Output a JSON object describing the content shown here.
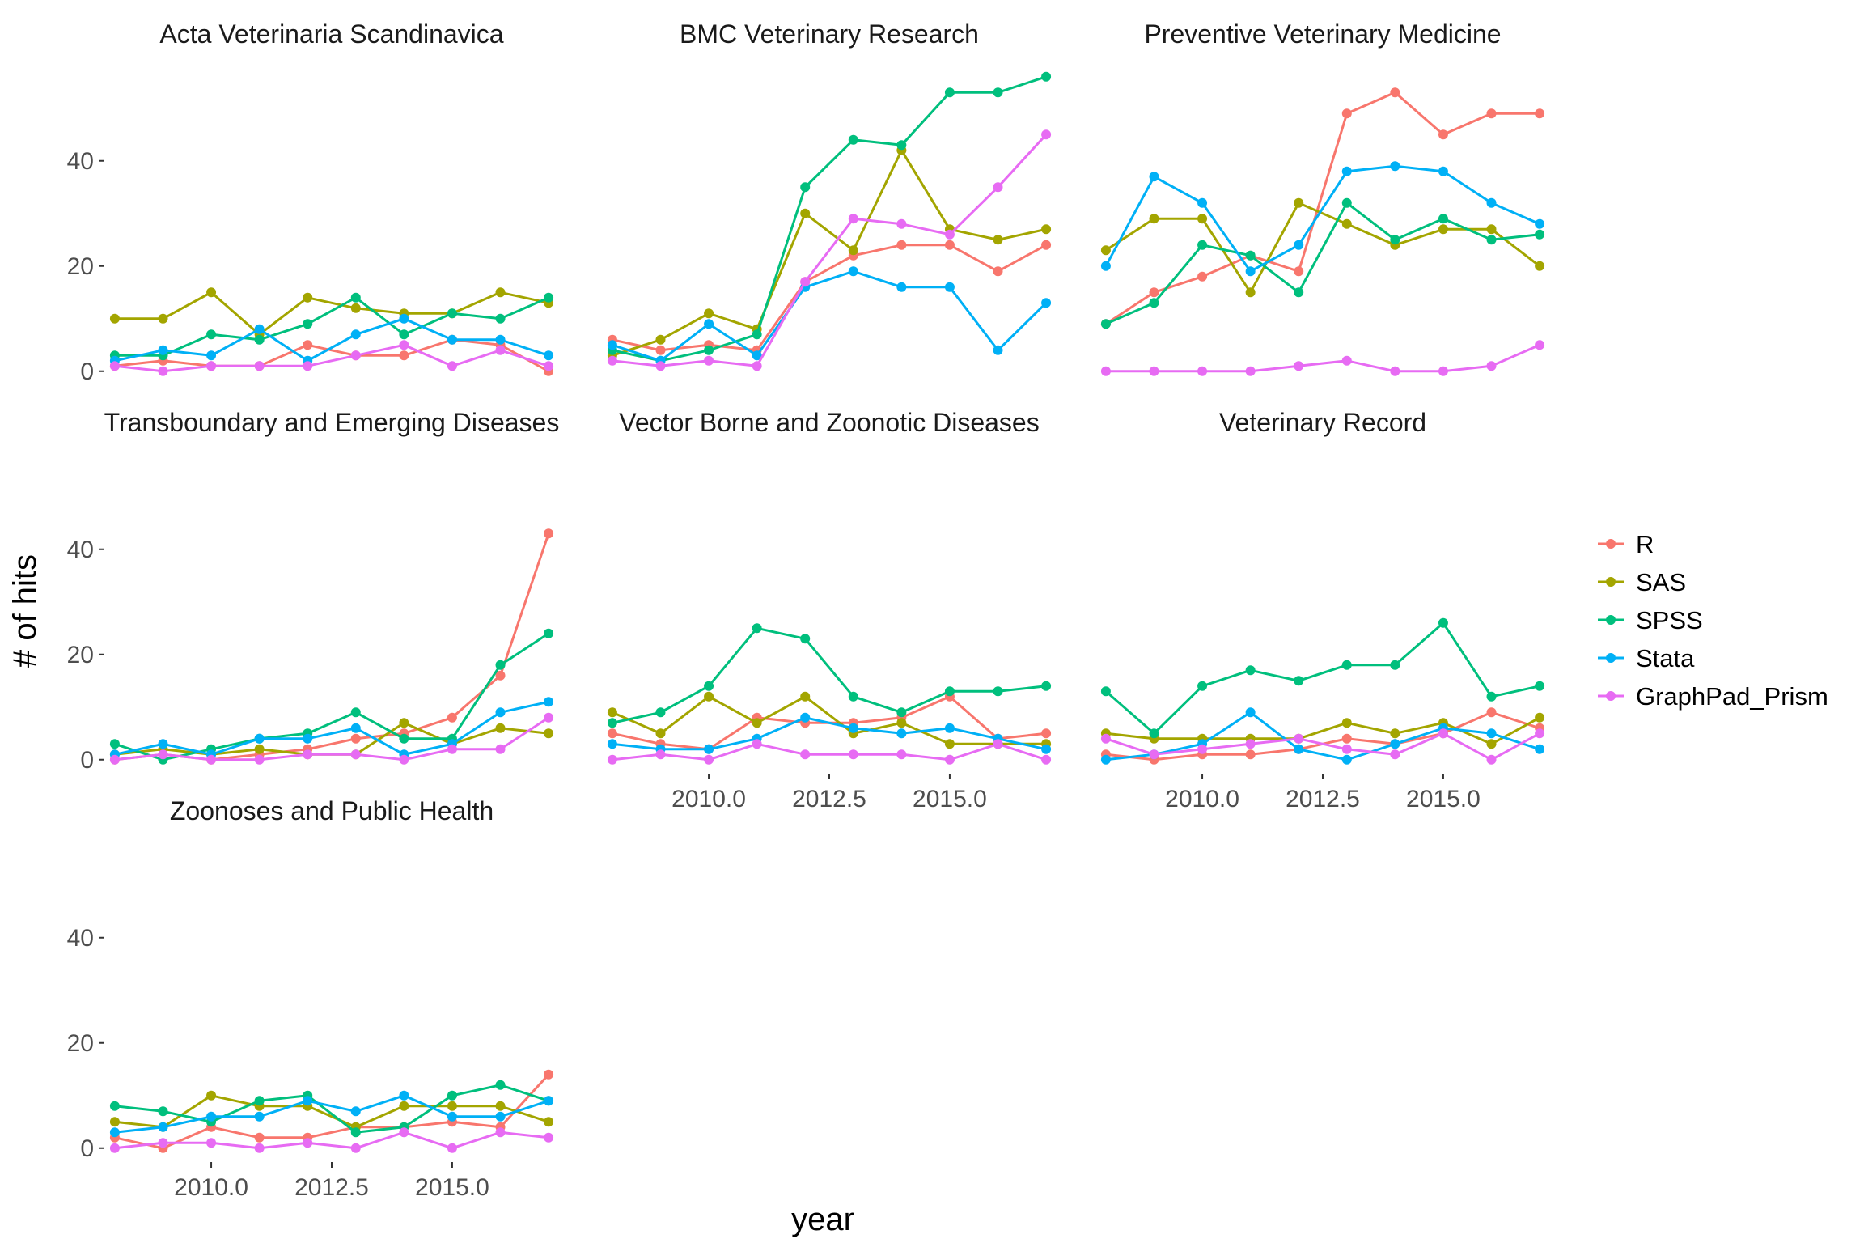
{
  "chart_data": {
    "type": "line",
    "xlabel": "year",
    "ylabel": "# of hits",
    "x": [
      2008,
      2009,
      2010,
      2011,
      2012,
      2013,
      2014,
      2015,
      2016,
      2017
    ],
    "xlim": [
      2007.8,
      2017.2
    ],
    "ylim": [
      -2.5,
      57.5
    ],
    "x_ticks": [
      2010.0,
      2012.5,
      2015.0
    ],
    "x_tick_labels": [
      "2010.0",
      "2012.5",
      "2015.0"
    ],
    "y_ticks": [
      0,
      20,
      40
    ],
    "y_tick_labels": [
      "0",
      "20",
      "40"
    ],
    "grid": false,
    "legend_position": "right",
    "series_info": [
      {
        "name": "R",
        "color": "#F8766D"
      },
      {
        "name": "SAS",
        "color": "#A3A500"
      },
      {
        "name": "SPSS",
        "color": "#00BF7D"
      },
      {
        "name": "Stata",
        "color": "#00B0F6"
      },
      {
        "name": "GraphPad_Prism",
        "color": "#E76BF3"
      }
    ],
    "panels": [
      {
        "title": "Acta Veterinaria Scandinavica",
        "series": [
          {
            "name": "R",
            "values": [
              1,
              2,
              1,
              1,
              5,
              3,
              3,
              6,
              5,
              0
            ]
          },
          {
            "name": "SAS",
            "values": [
              10,
              10,
              15,
              7,
              14,
              12,
              11,
              11,
              15,
              13
            ]
          },
          {
            "name": "SPSS",
            "values": [
              3,
              3,
              7,
              6,
              9,
              14,
              7,
              11,
              10,
              14
            ]
          },
          {
            "name": "Stata",
            "values": [
              2,
              4,
              3,
              8,
              2,
              7,
              10,
              6,
              6,
              3
            ]
          },
          {
            "name": "GraphPad_Prism",
            "values": [
              1,
              0,
              1,
              1,
              1,
              3,
              5,
              1,
              4,
              1
            ]
          }
        ]
      },
      {
        "title": "BMC Veterinary Research",
        "series": [
          {
            "name": "R",
            "values": [
              6,
              4,
              5,
              4,
              17,
              22,
              24,
              24,
              19,
              24
            ]
          },
          {
            "name": "SAS",
            "values": [
              3,
              6,
              11,
              8,
              30,
              23,
              42,
              27,
              25,
              27
            ]
          },
          {
            "name": "SPSS",
            "values": [
              4,
              2,
              4,
              7,
              35,
              44,
              43,
              53,
              53,
              56
            ]
          },
          {
            "name": "Stata",
            "values": [
              5,
              2,
              9,
              3,
              16,
              19,
              16,
              16,
              4,
              13
            ]
          },
          {
            "name": "GraphPad_Prism",
            "values": [
              2,
              1,
              2,
              1,
              17,
              29,
              28,
              26,
              35,
              45
            ]
          }
        ]
      },
      {
        "title": "Preventive Veterinary Medicine",
        "series": [
          {
            "name": "R",
            "values": [
              9,
              15,
              18,
              22,
              19,
              49,
              53,
              45,
              49,
              49
            ]
          },
          {
            "name": "SAS",
            "values": [
              23,
              29,
              29,
              15,
              32,
              28,
              24,
              27,
              27,
              20
            ]
          },
          {
            "name": "SPSS",
            "values": [
              9,
              13,
              24,
              22,
              15,
              32,
              25,
              29,
              25,
              26
            ]
          },
          {
            "name": "Stata",
            "values": [
              20,
              37,
              32,
              19,
              24,
              38,
              39,
              38,
              32,
              28
            ]
          },
          {
            "name": "GraphPad_Prism",
            "values": [
              0,
              0,
              0,
              0,
              1,
              2,
              0,
              0,
              1,
              5
            ]
          }
        ]
      },
      {
        "title": "Transboundary and Emerging Diseases",
        "series": [
          {
            "name": "R",
            "values": [
              0,
              1,
              0,
              1,
              2,
              4,
              5,
              8,
              16,
              43
            ]
          },
          {
            "name": "SAS",
            "values": [
              1,
              2,
              1,
              2,
              1,
              1,
              7,
              3,
              6,
              5
            ]
          },
          {
            "name": "SPSS",
            "values": [
              3,
              0,
              2,
              4,
              5,
              9,
              4,
              4,
              18,
              24
            ]
          },
          {
            "name": "Stata",
            "values": [
              1,
              3,
              1,
              4,
              4,
              6,
              1,
              3,
              9,
              11
            ]
          },
          {
            "name": "GraphPad_Prism",
            "values": [
              0,
              1,
              0,
              0,
              1,
              1,
              0,
              2,
              2,
              8
            ]
          }
        ]
      },
      {
        "title": "Vector Borne and Zoonotic Diseases",
        "series": [
          {
            "name": "R",
            "values": [
              5,
              3,
              2,
              8,
              7,
              7,
              8,
              12,
              4,
              5
            ]
          },
          {
            "name": "SAS",
            "values": [
              9,
              5,
              12,
              7,
              12,
              5,
              7,
              3,
              3,
              3
            ]
          },
          {
            "name": "SPSS",
            "values": [
              7,
              9,
              14,
              25,
              23,
              12,
              9,
              13,
              13,
              14
            ]
          },
          {
            "name": "Stata",
            "values": [
              3,
              2,
              2,
              4,
              8,
              6,
              5,
              6,
              4,
              2
            ]
          },
          {
            "name": "GraphPad_Prism",
            "values": [
              0,
              1,
              0,
              3,
              1,
              1,
              1,
              0,
              3,
              0
            ]
          }
        ]
      },
      {
        "title": "Veterinary Record",
        "series": [
          {
            "name": "R",
            "values": [
              1,
              0,
              1,
              1,
              2,
              4,
              3,
              5,
              9,
              6
            ]
          },
          {
            "name": "SAS",
            "values": [
              5,
              4,
              4,
              4,
              4,
              7,
              5,
              7,
              3,
              8
            ]
          },
          {
            "name": "SPSS",
            "values": [
              13,
              5,
              14,
              17,
              15,
              18,
              18,
              26,
              12,
              14
            ]
          },
          {
            "name": "Stata",
            "values": [
              0,
              1,
              3,
              9,
              2,
              0,
              3,
              6,
              5,
              2
            ]
          },
          {
            "name": "GraphPad_Prism",
            "values": [
              4,
              1,
              2,
              3,
              4,
              2,
              1,
              5,
              0,
              5
            ]
          }
        ]
      },
      {
        "title": "Zoonoses and Public Health",
        "series": [
          {
            "name": "R",
            "values": [
              2,
              0,
              4,
              2,
              2,
              4,
              4,
              5,
              4,
              14
            ]
          },
          {
            "name": "SAS",
            "values": [
              5,
              4,
              10,
              8,
              8,
              4,
              8,
              8,
              8,
              5
            ]
          },
          {
            "name": "SPSS",
            "values": [
              8,
              7,
              5,
              9,
              10,
              3,
              4,
              10,
              12,
              9
            ]
          },
          {
            "name": "Stata",
            "values": [
              3,
              4,
              6,
              6,
              9,
              7,
              10,
              6,
              6,
              9
            ]
          },
          {
            "name": "GraphPad_Prism",
            "values": [
              0,
              1,
              1,
              0,
              1,
              0,
              3,
              0,
              3,
              2
            ]
          }
        ]
      }
    ]
  }
}
